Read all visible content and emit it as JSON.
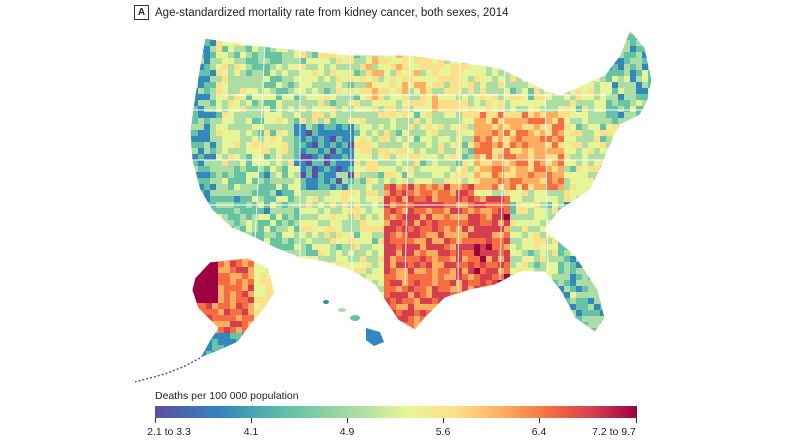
{
  "panel": {
    "letter": "A",
    "title": "Age-standardized mortality rate from kidney cancer, both sexes, 2014"
  },
  "legend": {
    "title": "Deaths per 100 000 population",
    "ticks": [
      "2.1 to 3.3",
      "4.1",
      "4.9",
      "5.6",
      "6.4",
      "7.2 to 9.7"
    ]
  },
  "colors": {
    "scale": [
      "#5e4fa2",
      "#3288bd",
      "#66c2a5",
      "#abdda4",
      "#e6f598",
      "#fee08b",
      "#fdae61",
      "#f46d43",
      "#d53e4f",
      "#9e0142"
    ],
    "state_border": "#ffffff"
  },
  "regions": {
    "conus": "contiguous-united-states",
    "alaska": "alaska",
    "hawaii": "hawaii"
  }
}
